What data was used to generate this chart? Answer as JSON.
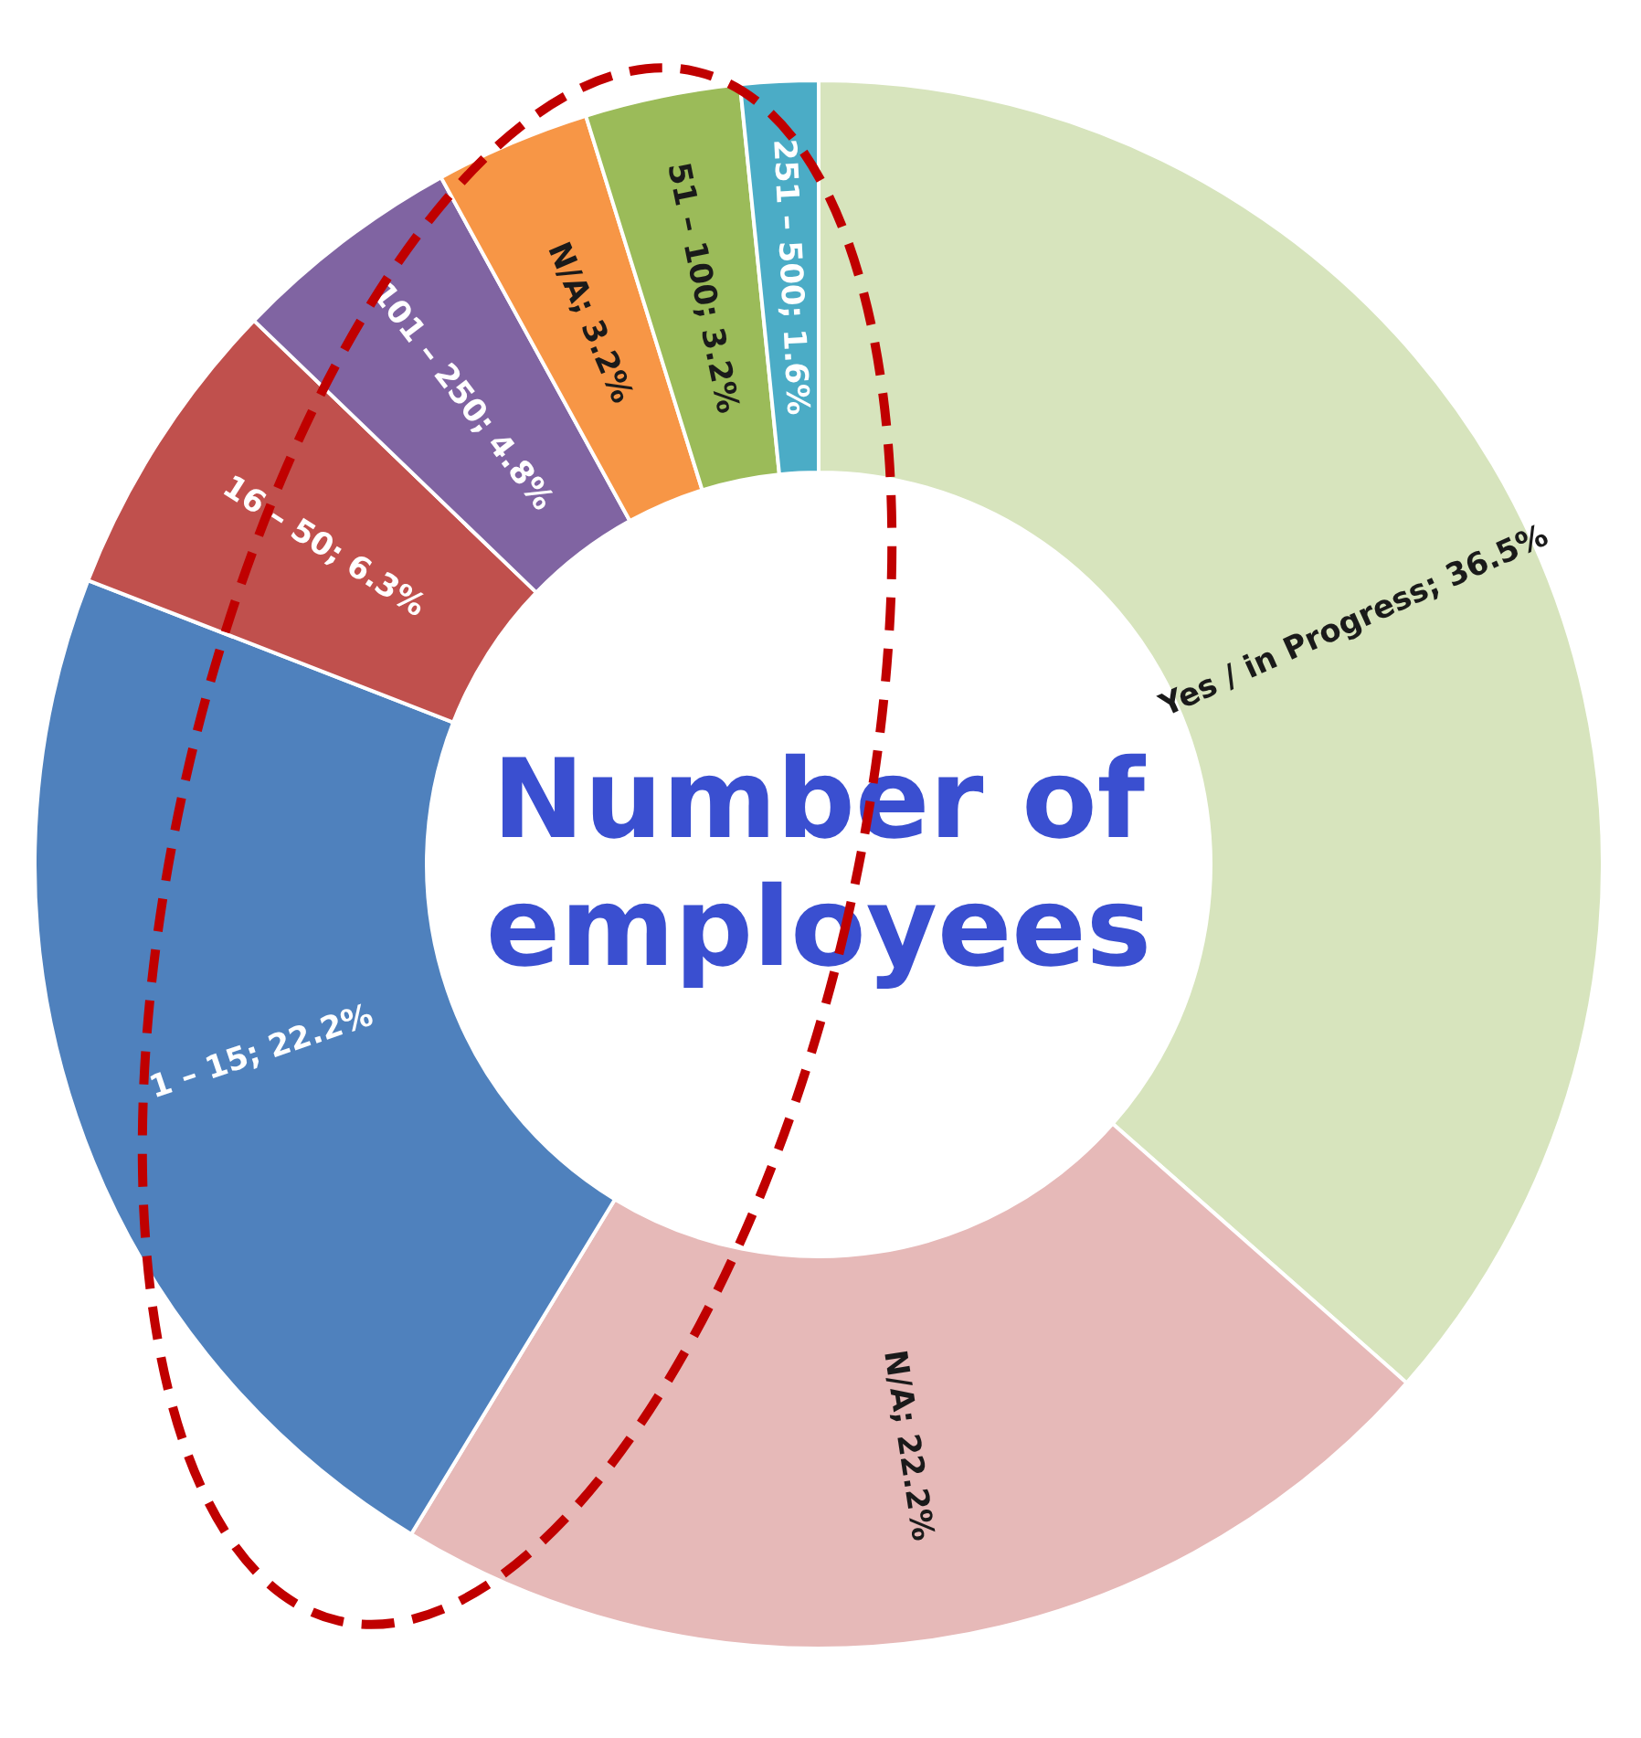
{
  "chart_data": {
    "type": "donut",
    "title": "Number of employees",
    "categories": [
      "Yes / in Progress",
      "N/A",
      "1 – 15",
      "16 – 50",
      "101 – 250",
      "N/A",
      "51 – 100",
      "251 – 500"
    ],
    "values": [
      36.5,
      22.2,
      22.2,
      6.3,
      4.8,
      3.2,
      3.2,
      1.6
    ],
    "colors": [
      "#d7e4bd",
      "#e6b9b8",
      "#4f81bd",
      "#c0504d",
      "#8064a2",
      "#f79646",
      "#9bbb59",
      "#4bacc6"
    ],
    "value_labels": [
      "; 36.5%",
      "; 22.2%",
      "; 22.2%",
      "; 6.3%",
      "; 4.8%",
      "; 3.2%",
      "; 3.2%",
      "; 1.6%"
    ],
    "legend": false
  }
}
